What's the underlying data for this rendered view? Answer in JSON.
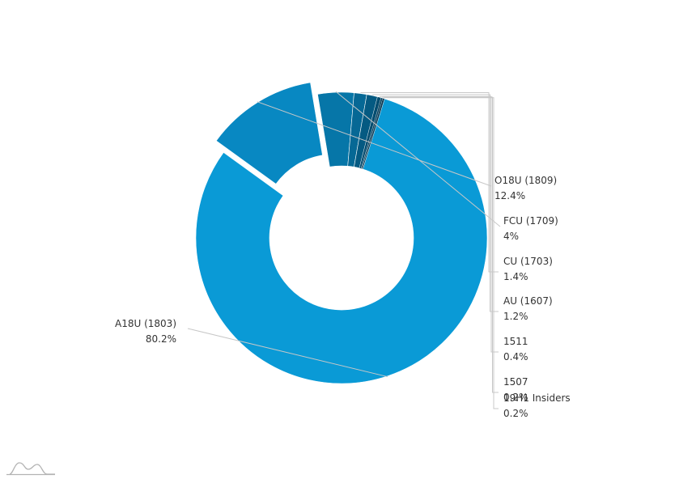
{
  "chart_data": {
    "type": "pie",
    "variant": "donut",
    "title": "",
    "legend": "none",
    "slices": [
      {
        "label": "A18U (1803)",
        "value": 80.2,
        "value_text": "80.2%",
        "color": "#0a9ad6",
        "exploded": false
      },
      {
        "label": "O18U (1809)",
        "value": 12.4,
        "value_text": "12.4%",
        "color": "#0888c2",
        "exploded": true
      },
      {
        "label": "FCU (1709)",
        "value": 4,
        "value_text": "4%",
        "color": "#0676a8",
        "exploded": false
      },
      {
        "label": "CU (1703)",
        "value": 1.4,
        "value_text": "1.4%",
        "color": "#066895",
        "exploded": false
      },
      {
        "label": "AU (1607)",
        "value": 1.2,
        "value_text": "1.2%",
        "color": "#055a82",
        "exploded": false
      },
      {
        "label": "1511",
        "value": 0.4,
        "value_text": "0.4%",
        "color": "#044c6f",
        "exploded": false
      },
      {
        "label": "1507",
        "value": 0.2,
        "value_text": "0.2%",
        "color": "#04405e",
        "exploded": false
      },
      {
        "label": "19H1 Insiders",
        "value": 0.2,
        "value_text": "0.2%",
        "color": "#033550",
        "exploded": false
      }
    ]
  },
  "logo": {
    "icon": "chart-app-logo-icon"
  }
}
